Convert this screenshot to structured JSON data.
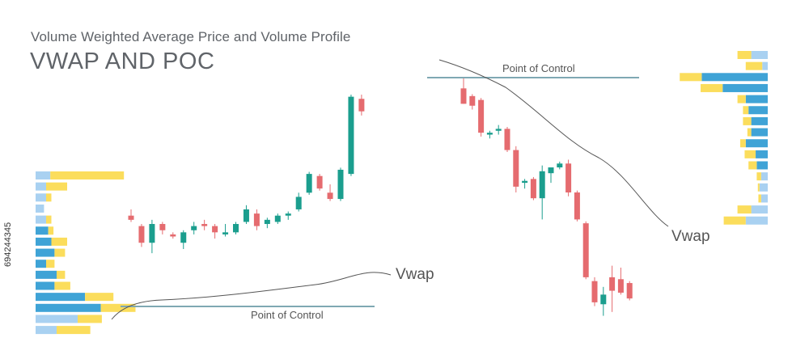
{
  "header": {
    "subtitle": "Volume Weighted Average Price and Volume Profile",
    "title": "VWAP AND POC"
  },
  "stock_id": "694244345",
  "colors": {
    "bull": "#1b9e8e",
    "bear": "#e56b6f",
    "volume_dark": "#3fa3d6",
    "volume_light": "#a9d1f1",
    "volume_yellow": "#fbdd5c",
    "poc_line": "#7fa8b3",
    "vwap_line": "#555555"
  },
  "chart_data": [
    {
      "type": "candlestick",
      "name": "uptrend",
      "title": "",
      "vwap_label": "Vwap",
      "poc_label": "Point of Control",
      "price_range": [
        0,
        100
      ],
      "poc_price": 12,
      "candles": [
        {
          "o": 35,
          "h": 38,
          "l": 32,
          "c": 33
        },
        {
          "o": 30,
          "h": 31,
          "l": 20,
          "c": 22
        },
        {
          "o": 22,
          "h": 33,
          "l": 17,
          "c": 31
        },
        {
          "o": 31,
          "h": 32,
          "l": 26,
          "c": 28
        },
        {
          "o": 26,
          "h": 27,
          "l": 24,
          "c": 25
        },
        {
          "o": 22,
          "h": 28,
          "l": 19,
          "c": 27
        },
        {
          "o": 28,
          "h": 32,
          "l": 26,
          "c": 30
        },
        {
          "o": 31,
          "h": 33,
          "l": 28,
          "c": 30
        },
        {
          "o": 30,
          "h": 31,
          "l": 24,
          "c": 27
        },
        {
          "o": 26,
          "h": 31,
          "l": 25,
          "c": 27
        },
        {
          "o": 27,
          "h": 32,
          "l": 26,
          "c": 31
        },
        {
          "o": 32,
          "h": 40,
          "l": 31,
          "c": 38
        },
        {
          "o": 36,
          "h": 38,
          "l": 28,
          "c": 30
        },
        {
          "o": 31,
          "h": 34,
          "l": 29,
          "c": 33
        },
        {
          "o": 32,
          "h": 36,
          "l": 31,
          "c": 35
        },
        {
          "o": 35,
          "h": 37,
          "l": 33,
          "c": 36
        },
        {
          "o": 38,
          "h": 46,
          "l": 37,
          "c": 44
        },
        {
          "o": 46,
          "h": 56,
          "l": 45,
          "c": 55
        },
        {
          "o": 54,
          "h": 55,
          "l": 47,
          "c": 48
        },
        {
          "o": 46,
          "h": 50,
          "l": 42,
          "c": 43
        },
        {
          "o": 43,
          "h": 58,
          "l": 42,
          "c": 57
        },
        {
          "o": 55,
          "h": 93,
          "l": 54,
          "c": 92
        },
        {
          "o": 91,
          "h": 93,
          "l": 83,
          "c": 85
        }
      ],
      "volume_profile": [
        {
          "light": 14,
          "yellow": 70
        },
        {
          "light": 10,
          "yellow": 20
        },
        {
          "light": 10,
          "yellow": 5
        },
        {
          "light": 8,
          "yellow": 0
        },
        {
          "light": 10,
          "yellow": 5
        },
        {
          "dark": 12,
          "yellow": 5
        },
        {
          "dark": 15,
          "yellow": 15
        },
        {
          "dark": 18,
          "yellow": 10
        },
        {
          "dark": 10,
          "yellow": 8
        },
        {
          "dark": 20,
          "yellow": 8
        },
        {
          "dark": 18,
          "yellow": 15
        },
        {
          "dark": 47,
          "yellow": 27
        },
        {
          "dark": 62,
          "yellow": 33
        },
        {
          "light": 40,
          "yellow": 23
        },
        {
          "light": 20,
          "yellow": 32
        }
      ]
    },
    {
      "type": "candlestick",
      "name": "downtrend",
      "title": "",
      "vwap_label": "Vwap",
      "poc_label": "Point of Control",
      "price_range": [
        0,
        100
      ],
      "poc_price": 86,
      "candles": [
        {
          "o": 80,
          "h": 86,
          "l": 72,
          "c": 72
        },
        {
          "o": 76,
          "h": 77,
          "l": 69,
          "c": 71
        },
        {
          "o": 74,
          "h": 75,
          "l": 55,
          "c": 57
        },
        {
          "o": 56,
          "h": 58,
          "l": 54,
          "c": 57
        },
        {
          "o": 58,
          "h": 61,
          "l": 56,
          "c": 59
        },
        {
          "o": 59,
          "h": 60,
          "l": 47,
          "c": 48
        },
        {
          "o": 48,
          "h": 50,
          "l": 26,
          "c": 29
        },
        {
          "o": 31,
          "h": 33,
          "l": 28,
          "c": 32
        },
        {
          "o": 33,
          "h": 34,
          "l": 22,
          "c": 23
        },
        {
          "o": 23,
          "h": 40,
          "l": 12,
          "c": 37
        },
        {
          "o": 36,
          "h": 38,
          "l": 31,
          "c": 39
        },
        {
          "o": 39,
          "h": 42,
          "l": 38,
          "c": 41
        },
        {
          "o": 41,
          "h": 43,
          "l": 24,
          "c": 26
        },
        {
          "o": 26,
          "h": 27,
          "l": 11,
          "c": 12
        },
        {
          "o": 10,
          "h": 11,
          "l": -19,
          "c": -18
        },
        {
          "o": -20,
          "h": -18,
          "l": -33,
          "c": -31
        },
        {
          "o": -32,
          "h": -23,
          "l": -38,
          "c": -27
        },
        {
          "o": -18,
          "h": -12,
          "l": -36,
          "c": -25
        },
        {
          "o": -19,
          "h": -13,
          "l": -27,
          "c": -26
        },
        {
          "o": -21,
          "h": -20,
          "l": -30,
          "c": -29
        }
      ],
      "volume_profile": [
        {
          "yellow": 25,
          "light": 30
        },
        {
          "yellow": 30,
          "light": 10
        },
        {
          "yellow": 40,
          "dark": 120
        },
        {
          "yellow": 40,
          "dark": 82
        },
        {
          "yellow": 15,
          "dark": 40
        },
        {
          "yellow": 10,
          "dark": 35
        },
        {
          "yellow": 15,
          "dark": 30
        },
        {
          "yellow": 7,
          "dark": 30
        },
        {
          "yellow": 10,
          "dark": 40
        },
        {
          "yellow": 20,
          "dark": 22
        },
        {
          "yellow": 15,
          "dark": 20
        },
        {
          "yellow": 8,
          "light": 12
        },
        {
          "yellow": 3,
          "light": 15
        },
        {
          "yellow": 5,
          "light": 12
        },
        {
          "yellow": 25,
          "light": 30
        },
        {
          "yellow": 40,
          "light": 40
        }
      ]
    }
  ]
}
